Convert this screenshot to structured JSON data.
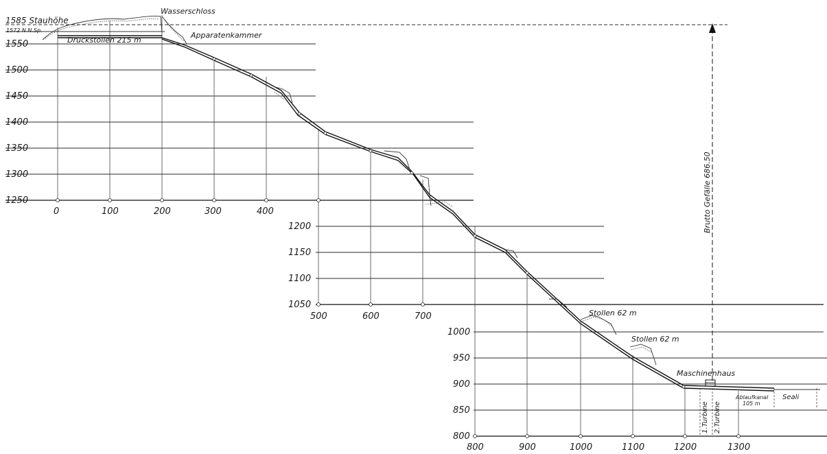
{
  "annotations": {
    "stauhoehe": "1585 Stauhöhe",
    "nnsp": "1572 N.N.Sp.",
    "wasserschloss": "Wasserschloss",
    "apparatenkammer": "Apparatenkammer",
    "druckstollen": "Druckstollen 215 m",
    "stollen_1": "Stollen 62 m",
    "stollen_2": "Stollen 62 m",
    "maschinenhaus": "Maschinenhaus",
    "turbine_1": "1.Turbine",
    "turbine_2": "2.Turbine",
    "ablaufkanal_line1": "Ablaufkanal",
    "ablaufkanal_line2": "105 m",
    "seali": "Seali",
    "brutto_gefaelle": "Brutto Gefälle 686.50"
  },
  "sections": [
    {
      "y_labels": [
        "1550",
        "1500",
        "1450",
        "1400",
        "1350",
        "1300",
        "1250"
      ],
      "x_labels": [
        "0",
        "100",
        "200",
        "300",
        "400"
      ]
    },
    {
      "y_labels": [
        "1200",
        "1150",
        "1100",
        "1050"
      ],
      "x_labels": [
        "500",
        "600",
        "700"
      ]
    },
    {
      "y_labels": [
        "1000",
        "950",
        "900",
        "850",
        "800"
      ],
      "x_labels": [
        "800",
        "900",
        "1000",
        "1100",
        "1200",
        "1300"
      ]
    }
  ]
}
